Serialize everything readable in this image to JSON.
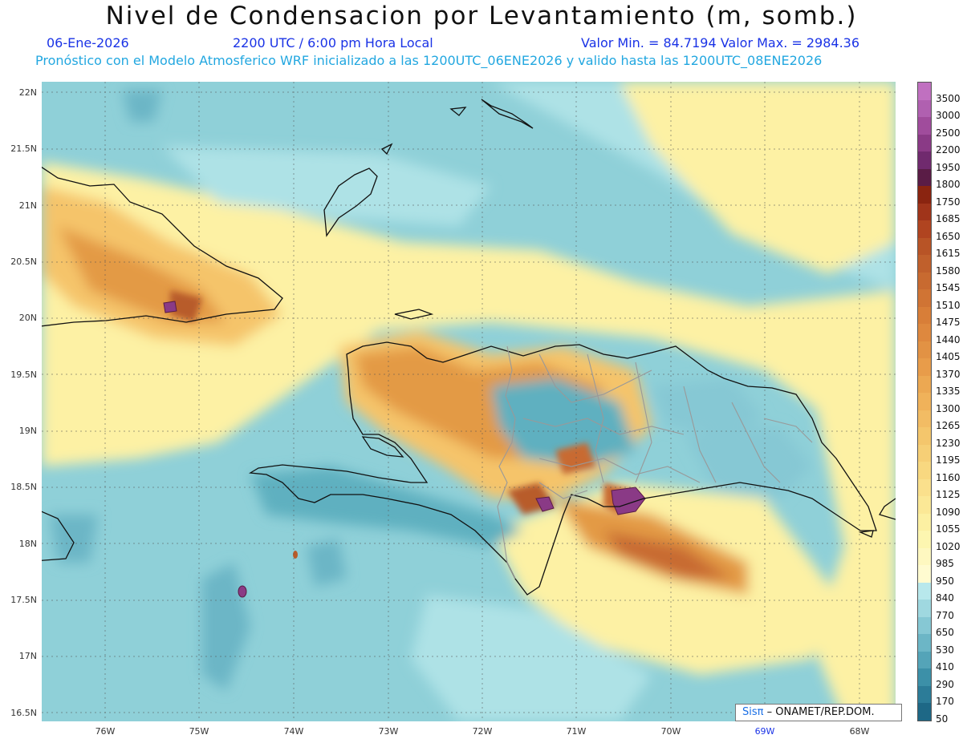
{
  "title": "Nivel de Condensacion por Levantamiento (m, somb.)",
  "date": "06-Ene-2026",
  "time": "2200 UTC / 6:00 pm Hora Local",
  "minmax": "Valor Min. = 84.7194   Valor Max. = 2984.36",
  "forecast": "Pronóstico con el Modelo Atmosferico WRF inicializado a las 1200UTC_06ENE2026 y valido hasta las  1200UTC_08ENE2026",
  "credit_logo": "Sisπ",
  "credit_text": "– ONAMET/REP.DOM.",
  "lat_labels": [
    "22N",
    "21.5N",
    "21N",
    "20.5N",
    "20N",
    "19.5N",
    "19N",
    "18.5N",
    "18N",
    "17.5N",
    "17N",
    "16.5N"
  ],
  "lon_labels": [
    "76W",
    "75W",
    "74W",
    "73W",
    "72W",
    "71W",
    "70W",
    "69W",
    "68W"
  ],
  "colorbar": {
    "labels": [
      "3500",
      "3000",
      "2500",
      "2200",
      "1950",
      "1800",
      "1750",
      "1685",
      "1650",
      "1615",
      "1580",
      "1545",
      "1510",
      "1475",
      "1440",
      "1405",
      "1370",
      "1335",
      "1300",
      "1265",
      "1230",
      "1195",
      "1160",
      "1125",
      "1090",
      "1055",
      "1020",
      "985",
      "950",
      "840",
      "770",
      "650",
      "530",
      "410",
      "290",
      "170",
      "50"
    ],
    "colors": [
      "#c070c0",
      "#b060b0",
      "#a04c9c",
      "#8a3a86",
      "#702a6e",
      "#5a1c46",
      "#8a2410",
      "#a0341a",
      "#b04420",
      "#b85426",
      "#c0602c",
      "#c86a30",
      "#d07434",
      "#d87e38",
      "#de883e",
      "#e29244",
      "#e89c4a",
      "#eca852",
      "#f0b25a",
      "#f2bc64",
      "#f4c66c",
      "#f6cf76",
      "#f8d880",
      "#fae08c",
      "#fbe896",
      "#fcf0a2",
      "#fdf6b0",
      "#fef8c0",
      "#fffbd0",
      "#b8e8ec",
      "#9fd8e0",
      "#86c8d4",
      "#6cb6c6",
      "#54a4b8",
      "#3c90a8",
      "#2c7c98",
      "#1e6886"
    ]
  },
  "map_colors": {
    "ocean_base": "#8fd0d8",
    "pale_teal": "#aee2e6",
    "deep_teal": "#5fb0c0",
    "yellow": "#fdf1a4",
    "light_orange": "#f5c46a",
    "orange": "#e39a45",
    "brown": "#b85c2a",
    "purple": "#8a3a86"
  }
}
